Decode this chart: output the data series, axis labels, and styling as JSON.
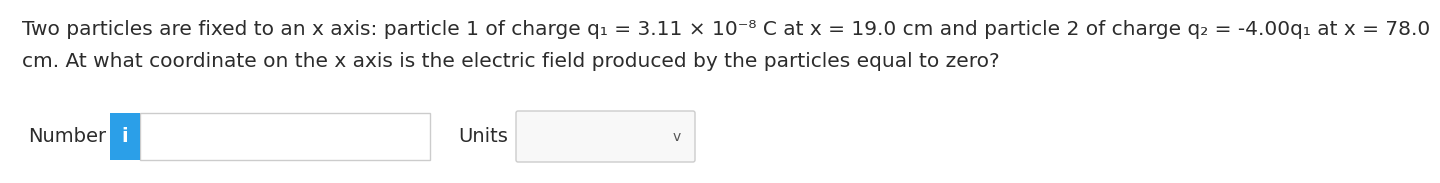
{
  "bg_color": "#ffffff",
  "text_line1": "Two particles are fixed to an x axis: particle 1 of charge q₁ = 3.11 × 10⁻⁸ C at x = 19.0 cm and particle 2 of charge q₂ = -4.00q₁ at x = 78.0",
  "text_line2": "cm. At what coordinate on the x axis is the electric field produced by the particles equal to zero?",
  "label_number": "Number",
  "label_units": "Units",
  "info_btn_color": "#2B9FE8",
  "info_btn_text": "i",
  "info_btn_text_color": "#ffffff",
  "input_box_color": "#ffffff",
  "input_box_border": "#cccccc",
  "dropdown_color": "#f8f8f8",
  "dropdown_border": "#cccccc",
  "chevron": "v",
  "text_color": "#2c2c2c",
  "font_size_main": 14.5,
  "font_size_ui": 14.0
}
